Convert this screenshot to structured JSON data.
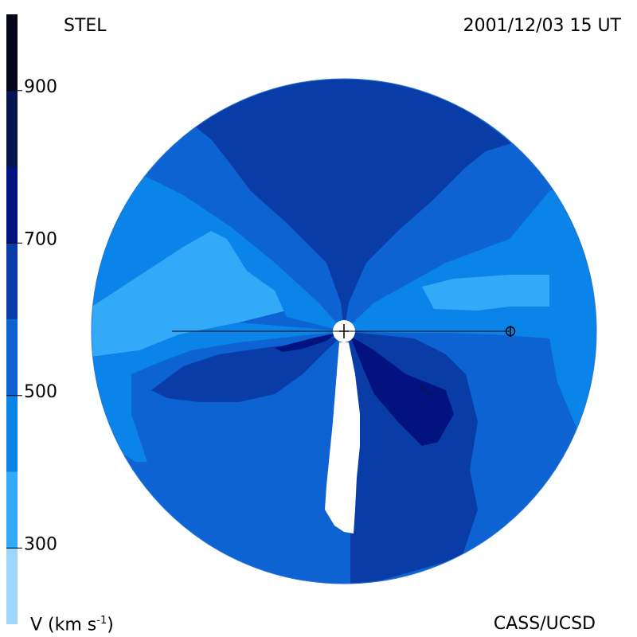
{
  "header": {
    "source": "STEL",
    "datetime": "2001/12/03 15 UT"
  },
  "footer": {
    "credit": "CASS/UCSD",
    "unit_main": "V (km s",
    "unit_exp": "-1",
    "unit_close": ")"
  },
  "chart_data": {
    "type": "heatmap",
    "title": "",
    "quantity_label": "V (km s-1)",
    "colorbar": {
      "range": [
        200,
        1000
      ],
      "ticks": [
        300,
        500,
        700,
        900
      ],
      "bands": [
        {
          "from": 200,
          "to": 300,
          "color": "#9dd6fa"
        },
        {
          "from": 300,
          "to": 400,
          "color": "#33aaf8"
        },
        {
          "from": 400,
          "to": 500,
          "color": "#0a84e8"
        },
        {
          "from": 500,
          "to": 600,
          "color": "#0e63d2"
        },
        {
          "from": 600,
          "to": 700,
          "color": "#0a3ca8"
        },
        {
          "from": 700,
          "to": 800,
          "color": "#02127e"
        },
        {
          "from": 800,
          "to": 900,
          "color": "#061450"
        },
        {
          "from": 900,
          "to": 1000,
          "color": "#05051c"
        }
      ]
    },
    "markers": [
      "sun-center-plus",
      "earth-symbol",
      "sun-earth-line"
    ],
    "colors": {
      "background": "#ffffff",
      "no_data": "#ffffff",
      "line": "#000000"
    }
  }
}
